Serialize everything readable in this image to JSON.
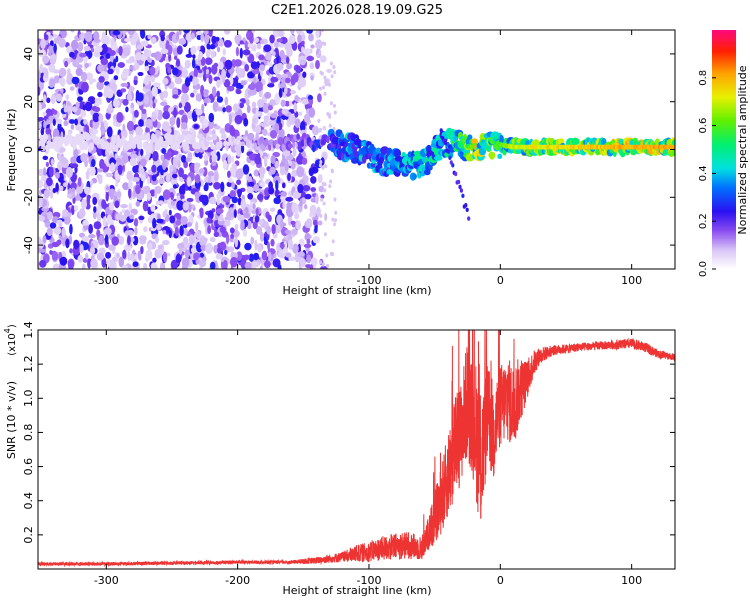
{
  "title": "C2E1.2026.028.19.09.G25",
  "colors": {
    "line": "#ee3333",
    "spec_dot": "#4a16d8",
    "axis": "#000000"
  },
  "chart_data": [
    {
      "type": "heatmap",
      "name": "spectrogram",
      "xlabel": "Height of straight line (km)",
      "ylabel": "Frequency (Hz)",
      "xlim": [
        -352,
        133
      ],
      "ylim": [
        -50,
        50
      ],
      "xticks": [
        -300,
        -200,
        -100,
        0,
        100
      ],
      "xtick_labels": [
        "-300",
        "-200",
        "-100",
        "0",
        "100"
      ],
      "yticks": [
        -40,
        -20,
        0,
        20,
        40
      ],
      "ytick_labels": [
        "-40",
        "-20",
        "0",
        "20",
        "40"
      ],
      "colorbar": {
        "label": "Normalized spectral amplitude",
        "range": [
          0.0,
          1.0
        ],
        "ticks": [
          0.0,
          0.2,
          0.4,
          0.6,
          0.8
        ],
        "tick_labels": [
          "0.0",
          "0.2",
          "0.4",
          "0.6",
          "0.8"
        ]
      },
      "signal_track": {
        "description_points_x_km": [
          -350,
          -300,
          -250,
          -200,
          -150,
          -130,
          -110,
          -90,
          -70,
          -55,
          -45,
          -30,
          -20,
          -10,
          0,
          10,
          50,
          100,
          133
        ],
        "frequency_hz": [
          3,
          3,
          3,
          3,
          3,
          3,
          0,
          -5,
          -7,
          -5,
          3,
          2,
          1,
          2,
          2,
          1,
          1,
          1,
          1
        ],
        "normalized_amplitude": [
          0.05,
          0.05,
          0.06,
          0.08,
          0.2,
          0.35,
          0.45,
          0.4,
          0.45,
          0.5,
          0.5,
          0.6,
          0.8,
          0.7,
          0.6,
          0.7,
          0.75,
          0.8,
          0.8
        ]
      }
    },
    {
      "type": "line",
      "name": "snr",
      "xlabel": "Height of straight line (km)",
      "ylabel": "SNR (10 * v/v)",
      "y_multiplier_label": "(x10",
      "y_multiplier_exp": "4",
      "y_multiplier_close": ")",
      "xlim": [
        -352,
        133
      ],
      "ylim": [
        0,
        1.4
      ],
      "xticks": [
        -300,
        -200,
        -100,
        0,
        100
      ],
      "xtick_labels": [
        "-300",
        "-200",
        "-100",
        "0",
        "100"
      ],
      "yticks": [
        0.2,
        0.4,
        0.6,
        0.8,
        1.0,
        1.2,
        1.4
      ],
      "ytick_labels": [
        "0.2",
        "0.4",
        "0.6",
        "0.8",
        "1.0",
        "1.2",
        "1.4"
      ],
      "series": [
        {
          "name": "SNR",
          "x": [
            -352,
            -300,
            -250,
            -200,
            -160,
            -140,
            -120,
            -110,
            -100,
            -90,
            -80,
            -70,
            -60,
            -55,
            -50,
            -45,
            -40,
            -35,
            -30,
            -25,
            -20,
            -15,
            -10,
            -5,
            0,
            5,
            10,
            15,
            20,
            25,
            30,
            40,
            60,
            80,
            100,
            110,
            120,
            133
          ],
          "y": [
            0.03,
            0.03,
            0.035,
            0.04,
            0.04,
            0.05,
            0.07,
            0.09,
            0.1,
            0.12,
            0.13,
            0.14,
            0.12,
            0.2,
            0.3,
            0.4,
            0.55,
            0.7,
            0.8,
            1.0,
            0.9,
            0.6,
            0.9,
            0.8,
            0.95,
            1.0,
            0.95,
            1.05,
            1.1,
            1.2,
            1.25,
            1.28,
            1.3,
            1.31,
            1.32,
            1.3,
            1.26,
            1.24
          ],
          "noise_amplitude": [
            0.01,
            0.01,
            0.01,
            0.01,
            0.01,
            0.02,
            0.03,
            0.05,
            0.06,
            0.07,
            0.08,
            0.08,
            0.07,
            0.1,
            0.15,
            0.2,
            0.25,
            0.3,
            0.3,
            0.35,
            0.4,
            0.4,
            0.3,
            0.3,
            0.25,
            0.25,
            0.25,
            0.2,
            0.12,
            0.08,
            0.05,
            0.03,
            0.025,
            0.025,
            0.03,
            0.03,
            0.025,
            0.02
          ]
        }
      ]
    }
  ]
}
